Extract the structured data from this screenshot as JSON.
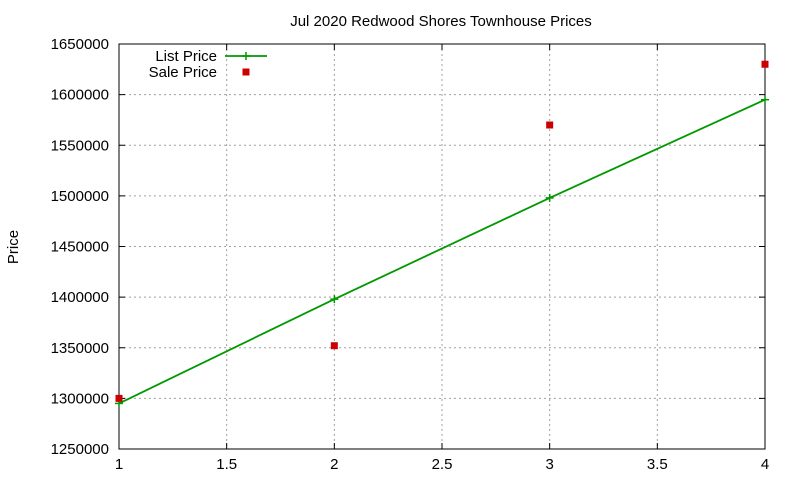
{
  "chart_data": {
    "type": "line",
    "title": "Jul 2020 Redwood Shores Townhouse Prices",
    "xlabel": "",
    "ylabel": "Price",
    "xlim": [
      1,
      4
    ],
    "ylim": [
      1250000,
      1650000
    ],
    "xticks": [
      1,
      1.5,
      2,
      2.5,
      3,
      3.5,
      4
    ],
    "xtick_labels": [
      "1",
      "1.5",
      "2",
      "2.5",
      "3",
      "3.5",
      "4"
    ],
    "yticks": [
      1250000,
      1300000,
      1350000,
      1400000,
      1450000,
      1500000,
      1550000,
      1600000,
      1650000
    ],
    "ytick_labels": [
      "1250000",
      "1300000",
      "1350000",
      "1400000",
      "1450000",
      "1500000",
      "1550000",
      "1600000",
      "1650000"
    ],
    "grid": true,
    "legend_position": "top-left",
    "series": [
      {
        "name": "List Price",
        "style": "line-with-plus-markers",
        "color": "#009900",
        "x": [
          1,
          2,
          3,
          4
        ],
        "y": [
          1295000,
          1398000,
          1498000,
          1595000
        ]
      },
      {
        "name": "Sale Price",
        "style": "square-markers",
        "color": "#cc0000",
        "x": [
          1,
          2,
          3,
          4
        ],
        "y": [
          1300000,
          1352000,
          1570000,
          1630000
        ]
      }
    ]
  }
}
